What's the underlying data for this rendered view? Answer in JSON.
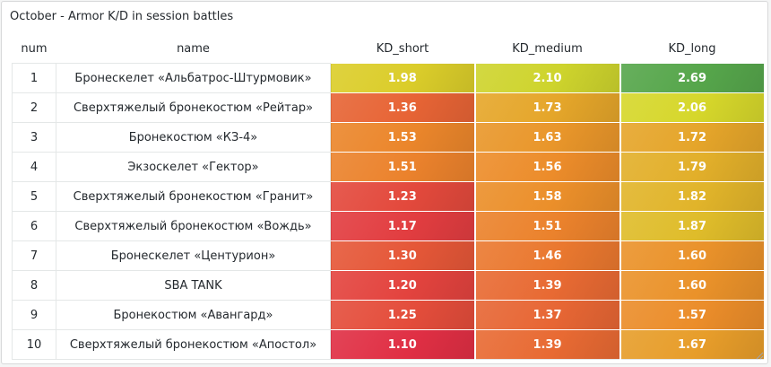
{
  "panel": {
    "title": "October - Armor K/D in session battles"
  },
  "table": {
    "columns": [
      "num",
      "name",
      "KD_short",
      "KD_medium",
      "KD_long"
    ],
    "rows": [
      {
        "num": "1",
        "name": "Бронескелет «Альбатрос-Штурмовик»",
        "kd_short": "1.98",
        "kd_medium": "2.10",
        "kd_long": "2.69"
      },
      {
        "num": "2",
        "name": "Сверхтяжелый бронекостюм «Рейтар»",
        "kd_short": "1.36",
        "kd_medium": "1.73",
        "kd_long": "2.06"
      },
      {
        "num": "3",
        "name": "Бронекостюм «КЗ-4»",
        "kd_short": "1.53",
        "kd_medium": "1.63",
        "kd_long": "1.72"
      },
      {
        "num": "4",
        "name": "Экзоскелет «Гектор»",
        "kd_short": "1.51",
        "kd_medium": "1.56",
        "kd_long": "1.79"
      },
      {
        "num": "5",
        "name": "Сверхтяжелый бронекостюм «Гранит»",
        "kd_short": "1.23",
        "kd_medium": "1.58",
        "kd_long": "1.82"
      },
      {
        "num": "6",
        "name": "Сверхтяжелый бронекостюм «Вождь»",
        "kd_short": "1.17",
        "kd_medium": "1.51",
        "kd_long": "1.87"
      },
      {
        "num": "7",
        "name": "Бронескелет «Центурион»",
        "kd_short": "1.30",
        "kd_medium": "1.46",
        "kd_long": "1.60"
      },
      {
        "num": "8",
        "name": "SBA TANK",
        "kd_short": "1.20",
        "kd_medium": "1.39",
        "kd_long": "1.60"
      },
      {
        "num": "9",
        "name": "Бронекостюм «Авангард»",
        "kd_short": "1.25",
        "kd_medium": "1.37",
        "kd_long": "1.57"
      },
      {
        "num": "10",
        "name": "Сверхтяжелый бронекостюм «Апостол»",
        "kd_short": "1.10",
        "kd_medium": "1.39",
        "kd_long": "1.67"
      }
    ]
  },
  "heat_colors": {
    "red": "#e02f44",
    "orange": "#ec8a2a",
    "yellow": "#d8d82a",
    "green": "#56a64b"
  },
  "icons": {
    "resize": "resize-handle-icon"
  }
}
